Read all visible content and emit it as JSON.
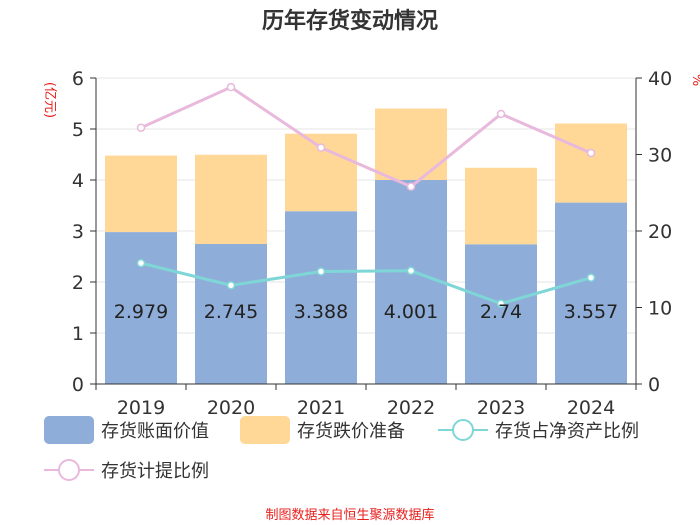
{
  "chart_data": {
    "type": "bar",
    "title": "历年存货变动情况",
    "categories": [
      "2019",
      "2020",
      "2021",
      "2022",
      "2023",
      "2024"
    ],
    "series": [
      {
        "name": "存货账面价值",
        "kind": "bar",
        "axis": "left",
        "color": "#8fadd9",
        "values": [
          2.979,
          2.745,
          3.388,
          4.001,
          2.74,
          3.557
        ]
      },
      {
        "name": "存货跌价准备",
        "kind": "bar-stacked",
        "axis": "left",
        "color": "#ffd797",
        "values": [
          1.5,
          1.75,
          1.52,
          1.4,
          1.5,
          1.55
        ]
      },
      {
        "name": "存货占净资产比例",
        "kind": "line",
        "axis": "right",
        "color": "#7fd6d6",
        "values": [
          15.8,
          12.9,
          14.7,
          14.8,
          10.5,
          13.9
        ]
      },
      {
        "name": "存货计提比例",
        "kind": "line",
        "axis": "right",
        "color": "#e8b9dc",
        "values": [
          33.5,
          38.8,
          30.9,
          25.8,
          35.3,
          30.2
        ]
      }
    ],
    "data_labels": [
      "2.979",
      "2.745",
      "3.388",
      "4.001",
      "2.74",
      "3.557"
    ],
    "y_left": {
      "label": "(亿元)",
      "ylim": [
        0,
        6
      ],
      "ticks": [
        "0",
        "1",
        "2",
        "3",
        "4",
        "5",
        "6"
      ]
    },
    "y_right": {
      "label": "%",
      "ylim": [
        0,
        40
      ],
      "ticks": [
        "0",
        "10",
        "20",
        "30",
        "40"
      ]
    },
    "grid": true,
    "legend_position": "bottom"
  },
  "footer": {
    "source": "制图数据来自恒生聚源数据库"
  }
}
